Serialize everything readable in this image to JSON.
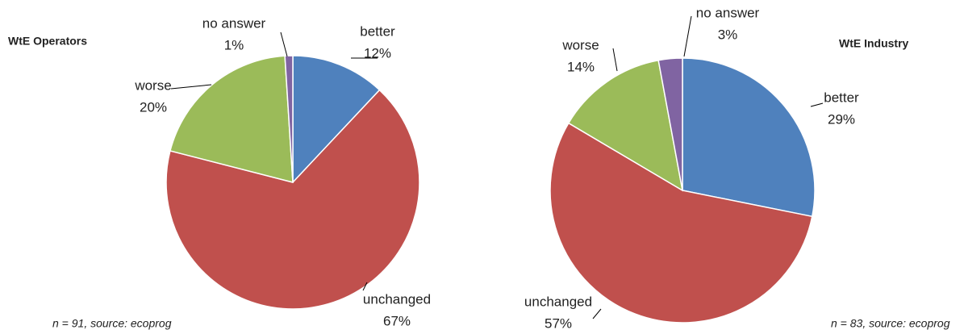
{
  "chart_data": [
    {
      "type": "pie",
      "title": "WtE Operators",
      "note": "n = 91, source: ecoprog",
      "categories": [
        "better",
        "unchanged",
        "worse",
        "no answer"
      ],
      "values": [
        12,
        67,
        20,
        1
      ],
      "value_labels": [
        "12%",
        "67%",
        "20%",
        "1%"
      ],
      "colors": [
        "#4f81bd",
        "#c0504d",
        "#9bbb59",
        "#8064a2"
      ]
    },
    {
      "type": "pie",
      "title": "WtE Industry",
      "note": "n = 83, source: ecoprog",
      "categories": [
        "better",
        "unchanged",
        "worse",
        "no answer"
      ],
      "values": [
        29,
        57,
        14,
        3
      ],
      "value_labels": [
        "29%",
        "57%",
        "14%",
        "3%"
      ],
      "colors": [
        "#4f81bd",
        "#c0504d",
        "#9bbb59",
        "#8064a2"
      ]
    }
  ]
}
